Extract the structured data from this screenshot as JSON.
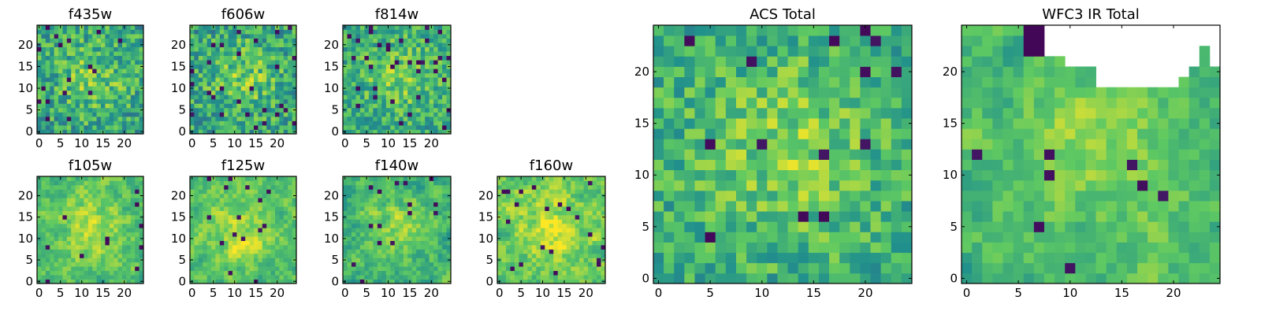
{
  "figure": {
    "background": "#ffffff",
    "colormap": [
      "#440154",
      "#3b528b",
      "#21918c",
      "#5ec962",
      "#fde725"
    ]
  },
  "chart_data": [
    {
      "type": "heatmap",
      "title": "f435w",
      "grid": [
        25,
        25
      ],
      "xticks": [
        0,
        5,
        10,
        15,
        20
      ],
      "yticks": [
        0,
        5,
        10,
        15,
        20
      ],
      "seed": 11,
      "smooth": 0,
      "hole": false,
      "base": 0.58,
      "spread": 0.22,
      "dark": 0.04
    },
    {
      "type": "heatmap",
      "title": "f606w",
      "grid": [
        25,
        25
      ],
      "xticks": [
        0,
        5,
        10,
        15,
        20
      ],
      "yticks": [
        0,
        5,
        10,
        15,
        20
      ],
      "seed": 22,
      "smooth": 0,
      "hole": false,
      "base": 0.58,
      "spread": 0.22,
      "dark": 0.04
    },
    {
      "type": "heatmap",
      "title": "f814w",
      "grid": [
        25,
        25
      ],
      "xticks": [
        0,
        5,
        10,
        15,
        20
      ],
      "yticks": [
        0,
        5,
        10,
        15,
        20
      ],
      "seed": 33,
      "smooth": 0,
      "hole": false,
      "base": 0.6,
      "spread": 0.2,
      "dark": 0.04
    },
    {
      "type": "heatmap",
      "title": "f105w",
      "grid": [
        25,
        25
      ],
      "xticks": [
        0,
        5,
        10,
        15,
        20
      ],
      "yticks": [
        0,
        5,
        10,
        15,
        20
      ],
      "seed": 44,
      "smooth": 1,
      "hole": false,
      "base": 0.68,
      "spread": 0.24,
      "dark": 0.02
    },
    {
      "type": "heatmap",
      "title": "f125w",
      "grid": [
        25,
        25
      ],
      "xticks": [
        0,
        5,
        10,
        15,
        20
      ],
      "yticks": [
        0,
        5,
        10,
        15,
        20
      ],
      "seed": 55,
      "smooth": 1,
      "hole": false,
      "base": 0.7,
      "spread": 0.24,
      "dark": 0.02
    },
    {
      "type": "heatmap",
      "title": "f140w",
      "grid": [
        25,
        25
      ],
      "xticks": [
        0,
        5,
        10,
        15,
        20
      ],
      "yticks": [
        0,
        5,
        10,
        15,
        20
      ],
      "seed": 66,
      "smooth": 1,
      "hole": false,
      "base": 0.64,
      "spread": 0.26,
      "dark": 0.03
    },
    {
      "type": "heatmap",
      "title": "f160w",
      "grid": [
        25,
        25
      ],
      "xticks": [
        0,
        5,
        10,
        15,
        20
      ],
      "yticks": [
        0,
        5,
        10,
        15,
        20
      ],
      "seed": 77,
      "smooth": 1,
      "hole": false,
      "base": 0.72,
      "spread": 0.26,
      "dark": 0.03
    },
    {
      "type": "heatmap",
      "title": "ACS Total",
      "grid": [
        25,
        25
      ],
      "xticks": [
        0,
        5,
        10,
        15,
        20
      ],
      "yticks": [
        0,
        5,
        10,
        15,
        20
      ],
      "seed": 88,
      "smooth": 0,
      "hole": false,
      "base": 0.62,
      "spread": 0.18,
      "dark": 0.03
    },
    {
      "type": "heatmap",
      "title": "WFC3 IR Total",
      "grid": [
        25,
        25
      ],
      "xticks": [
        0,
        5,
        10,
        15,
        20
      ],
      "yticks": [
        0,
        5,
        10,
        15,
        20
      ],
      "seed": 99,
      "smooth": 1,
      "hole": true,
      "base": 0.66,
      "spread": 0.22,
      "dark": 0.01
    }
  ]
}
